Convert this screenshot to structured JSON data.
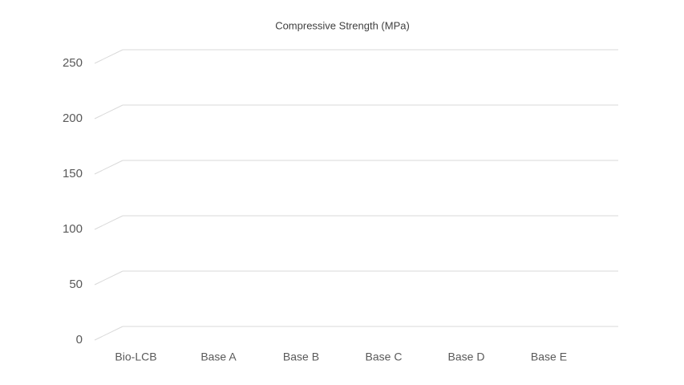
{
  "chart_data": {
    "type": "bar",
    "title": "Compressive Strength (MPa)",
    "categories": [
      "Bio-LCB",
      "Base A",
      "Base B",
      "Base C",
      "Base D",
      "Base E"
    ],
    "ylim": [
      0,
      250
    ],
    "yticks": [
      0,
      50,
      100,
      150,
      200,
      250
    ],
    "grid": true
  }
}
